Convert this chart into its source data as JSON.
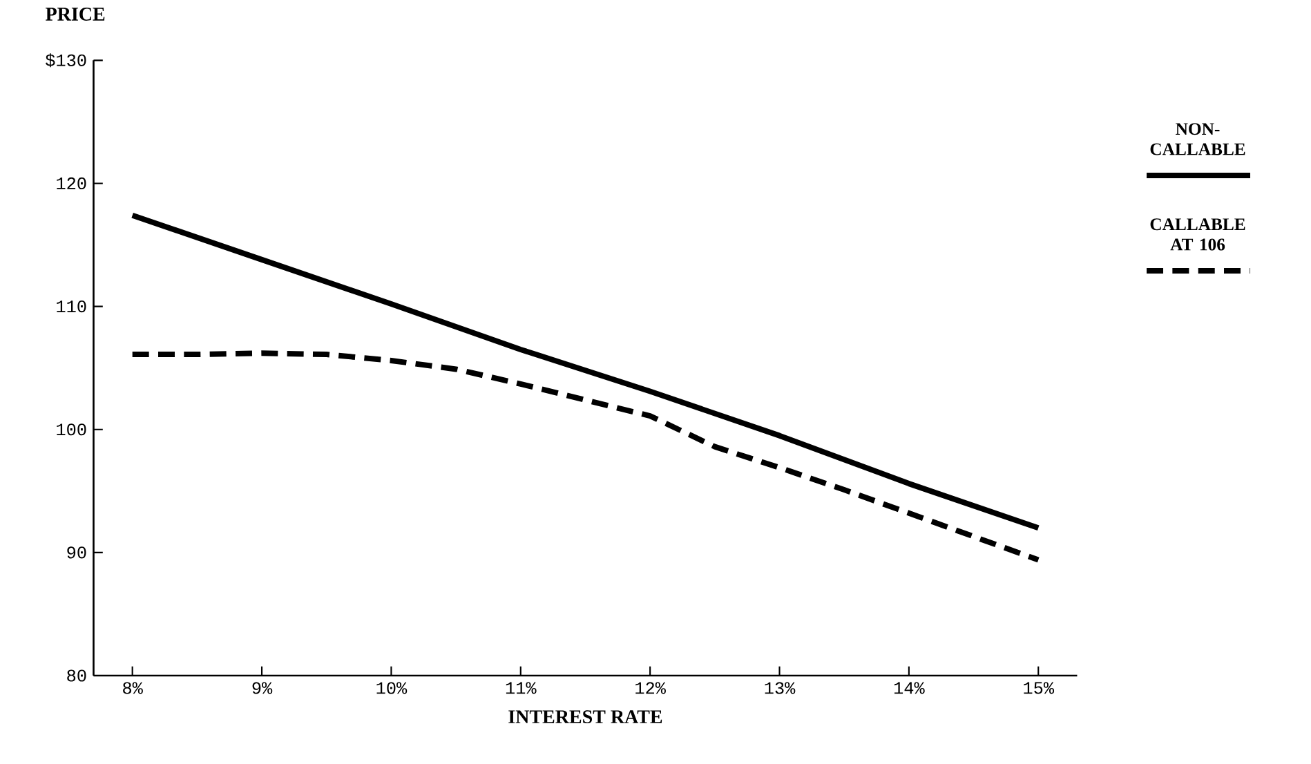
{
  "chart_data": {
    "type": "line",
    "xlabel": "INTEREST RATE",
    "ylabel": "PRICE",
    "xlim": [
      7.7,
      15.3
    ],
    "ylim": [
      80,
      130
    ],
    "xticks": [
      {
        "value": 8,
        "label": "8%"
      },
      {
        "value": 9,
        "label": "9%"
      },
      {
        "value": 10,
        "label": "10%"
      },
      {
        "value": 11,
        "label": "11%"
      },
      {
        "value": 12,
        "label": "12%"
      },
      {
        "value": 13,
        "label": "13%"
      },
      {
        "value": 14,
        "label": "14%"
      },
      {
        "value": 15,
        "label": "15%"
      }
    ],
    "yticks": [
      80,
      90,
      100,
      110,
      120,
      {
        "value": 130,
        "label": "$130"
      }
    ],
    "legend": "right",
    "series": [
      {
        "name": "NON-CALLABLE",
        "color": "#000000",
        "line_style": "solid",
        "x": [
          8,
          9,
          10,
          11,
          12,
          13,
          14,
          15
        ],
        "values": [
          117.4,
          113.8,
          110.2,
          106.5,
          103.1,
          99.5,
          95.6,
          92.0
        ]
      },
      {
        "name": "CALLABLE AT 106",
        "color": "#000000",
        "line_style": "dashed",
        "x": [
          8,
          8.5,
          9,
          9.5,
          10,
          10.5,
          11,
          11.5,
          12,
          12.5,
          13,
          13.5,
          14,
          14.5,
          15
        ],
        "values": [
          106.1,
          106.1,
          106.2,
          106.1,
          105.6,
          104.9,
          103.7,
          102.4,
          101.1,
          98.6,
          96.9,
          95.1,
          93.2,
          91.3,
          89.4
        ]
      }
    ]
  }
}
